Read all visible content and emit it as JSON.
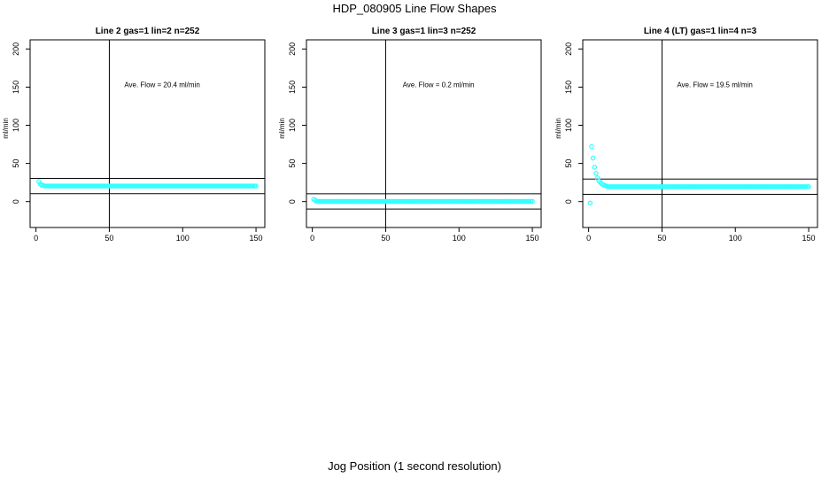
{
  "figure": {
    "title": "HDP_080905  Line Flow Shapes",
    "x_caption": "Jog Position (1 second resolution)"
  },
  "colors": {
    "points": "#33ffff",
    "axis": "#000000",
    "background": "#ffffff"
  },
  "chart_data": [
    {
      "type": "scatter",
      "title": "Line 2 gas=1 lin=2 n=252",
      "ylabel": "ml/min",
      "annotation_label": "Ave. Flow =",
      "annotation_value": "20.4  ml/min",
      "xlim": [
        -4,
        156
      ],
      "ylim": [
        -34,
        212
      ],
      "x_ticks": [
        0,
        50,
        100,
        150
      ],
      "y_ticks": [
        0,
        50,
        100,
        150,
        200
      ],
      "vline_x": 50,
      "hlines": [
        30.4,
        10.4
      ],
      "series": [
        {
          "x_start": 2,
          "x_end": 150,
          "head_points": [
            [
              2,
              26
            ],
            [
              3,
              23
            ],
            [
              4,
              21.5
            ],
            [
              5,
              21
            ]
          ],
          "tail_value": 20.4
        }
      ]
    },
    {
      "type": "scatter",
      "title": "Line 3 gas=1 lin=3 n=252",
      "ylabel": "ml/min",
      "annotation_label": "Ave. Flow =",
      "annotation_value": "0.2  ml/min",
      "xlim": [
        -4,
        156
      ],
      "ylim": [
        -34,
        212
      ],
      "x_ticks": [
        0,
        50,
        100,
        150
      ],
      "y_ticks": [
        0,
        50,
        100,
        150,
        200
      ],
      "vline_x": 50,
      "hlines": [
        10.2,
        -9.8
      ],
      "series": [
        {
          "x_start": 1,
          "x_end": 150,
          "head_points": [
            [
              1,
              3
            ],
            [
              2,
              1.5
            ]
          ],
          "tail_value": 0.2
        }
      ]
    },
    {
      "type": "scatter",
      "title": "Line 4 (LT) gas=1 lin=4 n=3",
      "ylabel": "ml/min",
      "annotation_label": "Ave. Flow =",
      "annotation_value": "19.5  ml/min",
      "xlim": [
        -4,
        156
      ],
      "ylim": [
        -34,
        212
      ],
      "x_ticks": [
        0,
        50,
        100,
        150
      ],
      "y_ticks": [
        0,
        50,
        100,
        150,
        200
      ],
      "vline_x": 50,
      "hlines": [
        29.5,
        9.5
      ],
      "series": [
        {
          "x_start": 1,
          "x_end": 150,
          "head_points": [
            [
              1,
              -2
            ],
            [
              2,
              72
            ],
            [
              3,
              57
            ],
            [
              4,
              45
            ],
            [
              5,
              37
            ],
            [
              6,
              31
            ],
            [
              7,
              27
            ],
            [
              8,
              25
            ],
            [
              9,
              23
            ],
            [
              10,
              22
            ],
            [
              11,
              21
            ],
            [
              12,
              20.5
            ]
          ],
          "tail_value": 19.5
        }
      ]
    }
  ]
}
